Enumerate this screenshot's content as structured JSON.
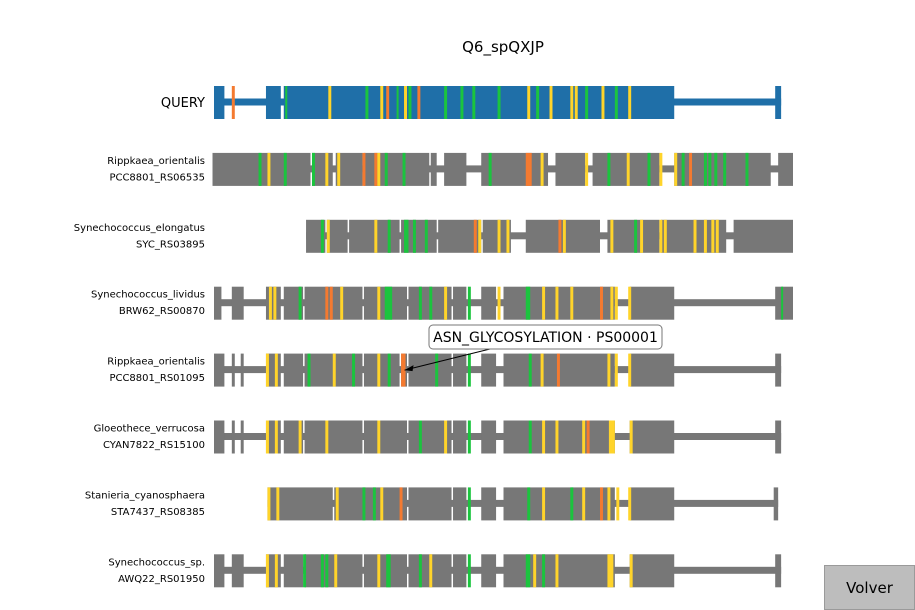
{
  "title": "Q6_spQXJP",
  "colors": {
    "query": "#1f6fa8",
    "hit": "#777777",
    "motif_yellow": "#ffd42a",
    "motif_green": "#1bc43e",
    "motif_orange": "#f47a30"
  },
  "chart_data": {
    "type": "sequence-alignment",
    "xlim": [
      0,
      390
    ],
    "rows": [
      {
        "labels": [
          "QUERY"
        ],
        "kind": "query",
        "line": [
          0,
          382
        ],
        "blocks": [
          [
            0,
            7
          ],
          [
            35,
            45
          ],
          [
            47,
            310
          ],
          [
            378,
            382
          ]
        ],
        "marks": [
          [
            12,
            2,
            "orange"
          ],
          [
            48,
            1,
            "green"
          ],
          [
            77,
            2,
            "yellow"
          ],
          [
            102,
            2,
            "green"
          ],
          [
            112,
            2,
            "yellow"
          ],
          [
            116,
            2,
            "orange"
          ],
          [
            123,
            1,
            "green"
          ],
          [
            128,
            2,
            "yellow"
          ],
          [
            131,
            2,
            "green"
          ],
          [
            137,
            2,
            "orange"
          ],
          [
            155,
            2,
            "green"
          ],
          [
            166,
            2,
            "green"
          ],
          [
            174,
            2,
            "green"
          ],
          [
            191,
            2,
            "green"
          ],
          [
            211,
            2,
            "yellow"
          ],
          [
            217,
            2,
            "green"
          ],
          [
            226,
            2,
            "yellow"
          ],
          [
            240,
            2,
            "yellow"
          ],
          [
            243,
            2,
            "yellow"
          ],
          [
            250,
            2,
            "green"
          ],
          [
            261,
            2,
            "yellow"
          ],
          [
            270,
            2,
            "green"
          ],
          [
            279,
            2,
            "yellow"
          ]
        ]
      },
      {
        "labels": [
          "Rippkaea_orientalis",
          "PCC8801_RS06535"
        ],
        "kind": "hit",
        "line": [
          0,
          390
        ],
        "blocks": [
          [
            -1,
            30
          ],
          [
            30,
            65
          ],
          [
            66,
            80
          ],
          [
            82,
            100
          ],
          [
            101,
            145
          ],
          [
            146,
            150
          ],
          [
            155,
            170
          ],
          [
            180,
            225
          ],
          [
            230,
            250
          ],
          [
            255,
            300
          ],
          [
            310,
            375
          ],
          [
            380,
            390
          ]
        ],
        "marks": [
          [
            30,
            2,
            "green"
          ],
          [
            36,
            2,
            "yellow"
          ],
          [
            47,
            2,
            "green"
          ],
          [
            66,
            2,
            "green"
          ],
          [
            75,
            2,
            "yellow"
          ],
          [
            83,
            2,
            "yellow"
          ],
          [
            100,
            2,
            "orange"
          ],
          [
            108,
            2,
            "orange"
          ],
          [
            110,
            2,
            "yellow"
          ],
          [
            115,
            2,
            "green"
          ],
          [
            127,
            2,
            "green"
          ],
          [
            185,
            2,
            "green"
          ],
          [
            210,
            4,
            "orange"
          ],
          [
            220,
            2,
            "yellow"
          ],
          [
            250,
            2,
            "yellow"
          ],
          [
            265,
            2,
            "green"
          ],
          [
            278,
            2,
            "yellow"
          ],
          [
            292,
            2,
            "green"
          ],
          [
            300,
            2,
            "yellow"
          ],
          [
            310,
            2,
            "yellow"
          ],
          [
            315,
            2,
            "green"
          ],
          [
            320,
            2,
            "orange"
          ],
          [
            330,
            2,
            "green"
          ],
          [
            333,
            2,
            "green"
          ],
          [
            337,
            2,
            "green"
          ],
          [
            343,
            2,
            "green"
          ],
          [
            358,
            2,
            "green"
          ]
        ]
      },
      {
        "labels": [
          "Synechococcus_elongatus",
          "SYC_RS03895"
        ],
        "kind": "hit",
        "line": [
          62,
          390
        ],
        "blocks": [
          [
            62,
            75
          ],
          [
            76,
            90
          ],
          [
            91,
            125
          ],
          [
            126,
            150
          ],
          [
            151,
            180
          ],
          [
            181,
            200
          ],
          [
            210,
            260
          ],
          [
            265,
            300
          ],
          [
            301,
            345
          ],
          [
            350,
            390
          ]
        ],
        "marks": [
          [
            72,
            2,
            "green"
          ],
          [
            76,
            2,
            "yellow"
          ],
          [
            108,
            2,
            "yellow"
          ],
          [
            117,
            2,
            "green"
          ],
          [
            128,
            3,
            "green"
          ],
          [
            134,
            2,
            "green"
          ],
          [
            142,
            2,
            "green"
          ],
          [
            175,
            2,
            "orange"
          ],
          [
            178,
            2,
            "yellow"
          ],
          [
            191,
            2,
            "yellow"
          ],
          [
            197,
            2,
            "yellow"
          ],
          [
            232,
            2,
            "orange"
          ],
          [
            235,
            2,
            "yellow"
          ],
          [
            267,
            2,
            "yellow"
          ],
          [
            283,
            2,
            "green"
          ],
          [
            287,
            2,
            "yellow"
          ],
          [
            300,
            2,
            "yellow"
          ],
          [
            303,
            2,
            "yellow"
          ],
          [
            323,
            2,
            "yellow"
          ],
          [
            330,
            2,
            "yellow"
          ],
          [
            335,
            2,
            "yellow"
          ],
          [
            338,
            2,
            "yellow"
          ]
        ]
      },
      {
        "labels": [
          "Synechococcus_lividus",
          "BRW62_RS00870"
        ],
        "kind": "hit",
        "line": [
          0,
          390
        ],
        "blocks": [
          [
            0,
            5
          ],
          [
            12,
            20
          ],
          [
            35,
            45
          ],
          [
            47,
            60
          ],
          [
            61,
            100
          ],
          [
            101,
            130
          ],
          [
            131,
            160
          ],
          [
            161,
            170
          ],
          [
            180,
            190
          ],
          [
            195,
            270
          ],
          [
            280,
            310
          ],
          [
            378,
            390
          ]
        ],
        "marks": [
          [
            37,
            2,
            "yellow"
          ],
          [
            40,
            2,
            "yellow"
          ],
          [
            57,
            2,
            "green"
          ],
          [
            75,
            2,
            "orange"
          ],
          [
            78,
            2,
            "orange"
          ],
          [
            85,
            2,
            "yellow"
          ],
          [
            110,
            2,
            "yellow"
          ],
          [
            115,
            5,
            "green"
          ],
          [
            138,
            2,
            "green"
          ],
          [
            145,
            2,
            "green"
          ],
          [
            155,
            2,
            "yellow"
          ],
          [
            171,
            2,
            "green"
          ],
          [
            191,
            2,
            "yellow"
          ],
          [
            210,
            3,
            "green"
          ],
          [
            221,
            2,
            "yellow"
          ],
          [
            230,
            2,
            "yellow"
          ],
          [
            240,
            2,
            "yellow"
          ],
          [
            260,
            2,
            "orange"
          ],
          [
            267,
            2,
            "yellow"
          ],
          [
            270,
            2,
            "yellow"
          ],
          [
            279,
            2,
            "yellow"
          ],
          [
            382,
            1,
            "green"
          ]
        ]
      },
      {
        "labels": [
          "Rippkaea_orientalis",
          "PCC8801_RS01095"
        ],
        "kind": "hit",
        "line": [
          0,
          382
        ],
        "blocks": [
          [
            0,
            7
          ],
          [
            12,
            14
          ],
          [
            18,
            20
          ],
          [
            35,
            45
          ],
          [
            47,
            60
          ],
          [
            61,
            100
          ],
          [
            101,
            125
          ],
          [
            126,
            130
          ],
          [
            131,
            160
          ],
          [
            161,
            170
          ],
          [
            180,
            190
          ],
          [
            195,
            270
          ],
          [
            280,
            310
          ],
          [
            378,
            382
          ]
        ],
        "marks": [
          [
            35,
            2,
            "yellow"
          ],
          [
            41,
            2,
            "yellow"
          ],
          [
            63,
            2,
            "green"
          ],
          [
            80,
            2,
            "yellow"
          ],
          [
            93,
            2,
            "green"
          ],
          [
            110,
            2,
            "yellow"
          ],
          [
            117,
            2,
            "green"
          ],
          [
            126,
            3,
            "orange"
          ],
          [
            149,
            2,
            "green"
          ],
          [
            171,
            2,
            "green"
          ],
          [
            212,
            2,
            "green"
          ],
          [
            220,
            2,
            "yellow"
          ],
          [
            231,
            2,
            "orange"
          ],
          [
            265,
            2,
            "yellow"
          ],
          [
            270,
            2,
            "yellow"
          ],
          [
            279,
            2,
            "yellow"
          ]
        ]
      },
      {
        "labels": [
          "Gloeothece_verrucosa",
          "CYAN7822_RS15100"
        ],
        "kind": "hit",
        "line": [
          0,
          382
        ],
        "blocks": [
          [
            0,
            7
          ],
          [
            12,
            14
          ],
          [
            18,
            20
          ],
          [
            35,
            45
          ],
          [
            47,
            60
          ],
          [
            61,
            100
          ],
          [
            101,
            130
          ],
          [
            131,
            160
          ],
          [
            161,
            170
          ],
          [
            180,
            190
          ],
          [
            195,
            270
          ],
          [
            280,
            310
          ],
          [
            378,
            382
          ]
        ],
        "marks": [
          [
            35,
            2,
            "yellow"
          ],
          [
            41,
            2,
            "yellow"
          ],
          [
            57,
            2,
            "yellow"
          ],
          [
            75,
            2,
            "yellow"
          ],
          [
            110,
            2,
            "yellow"
          ],
          [
            138,
            2,
            "green"
          ],
          [
            155,
            2,
            "yellow"
          ],
          [
            171,
            2,
            "green"
          ],
          [
            212,
            2,
            "green"
          ],
          [
            221,
            2,
            "yellow"
          ],
          [
            230,
            2,
            "yellow"
          ],
          [
            248,
            2,
            "yellow"
          ],
          [
            251,
            2,
            "orange"
          ],
          [
            266,
            4,
            "yellow"
          ],
          [
            280,
            2,
            "yellow"
          ]
        ]
      },
      {
        "labels": [
          "Stanieria_cyanosphaera",
          "STA7437_RS08385"
        ],
        "kind": "hit",
        "line": [
          36,
          380
        ],
        "blocks": [
          [
            36,
            80
          ],
          [
            81,
            130
          ],
          [
            131,
            160
          ],
          [
            161,
            170
          ],
          [
            180,
            190
          ],
          [
            195,
            270
          ],
          [
            280,
            310
          ],
          [
            377,
            380
          ]
        ],
        "marks": [
          [
            36,
            2,
            "yellow"
          ],
          [
            42,
            2,
            "yellow"
          ],
          [
            82,
            2,
            "yellow"
          ],
          [
            100,
            2,
            "green"
          ],
          [
            107,
            2,
            "green"
          ],
          [
            112,
            2,
            "yellow"
          ],
          [
            125,
            2,
            "orange"
          ],
          [
            171,
            2,
            "green"
          ],
          [
            211,
            2,
            "green"
          ],
          [
            221,
            2,
            "yellow"
          ],
          [
            240,
            2,
            "green"
          ],
          [
            248,
            2,
            "yellow"
          ],
          [
            260,
            2,
            "orange"
          ],
          [
            265,
            2,
            "yellow"
          ],
          [
            271,
            2,
            "yellow"
          ],
          [
            279,
            2,
            "yellow"
          ]
        ]
      },
      {
        "labels": [
          "Synechococcus_sp.",
          "AWQ22_RS01950"
        ],
        "kind": "hit",
        "line": [
          0,
          382
        ],
        "blocks": [
          [
            0,
            7
          ],
          [
            12,
            20
          ],
          [
            35,
            45
          ],
          [
            47,
            60
          ],
          [
            61,
            100
          ],
          [
            101,
            130
          ],
          [
            131,
            160
          ],
          [
            161,
            170
          ],
          [
            180,
            190
          ],
          [
            195,
            270
          ],
          [
            280,
            310
          ],
          [
            378,
            382
          ]
        ],
        "marks": [
          [
            35,
            2,
            "yellow"
          ],
          [
            41,
            2,
            "yellow"
          ],
          [
            60,
            2,
            "green"
          ],
          [
            72,
            2,
            "green"
          ],
          [
            75,
            2,
            "green"
          ],
          [
            81,
            2,
            "yellow"
          ],
          [
            110,
            2,
            "yellow"
          ],
          [
            116,
            3,
            "green"
          ],
          [
            138,
            2,
            "green"
          ],
          [
            145,
            2,
            "yellow"
          ],
          [
            171,
            2,
            "green"
          ],
          [
            210,
            3,
            "green"
          ],
          [
            215,
            2,
            "yellow"
          ],
          [
            221,
            2,
            "green"
          ],
          [
            230,
            2,
            "yellow"
          ],
          [
            265,
            4,
            "yellow"
          ],
          [
            280,
            2,
            "yellow"
          ]
        ]
      }
    ],
    "annotation": {
      "text": "ASN_GLYCOSYLATION · PS00001",
      "row": 4,
      "pos": 127
    }
  },
  "button": {
    "label": "Volver"
  }
}
